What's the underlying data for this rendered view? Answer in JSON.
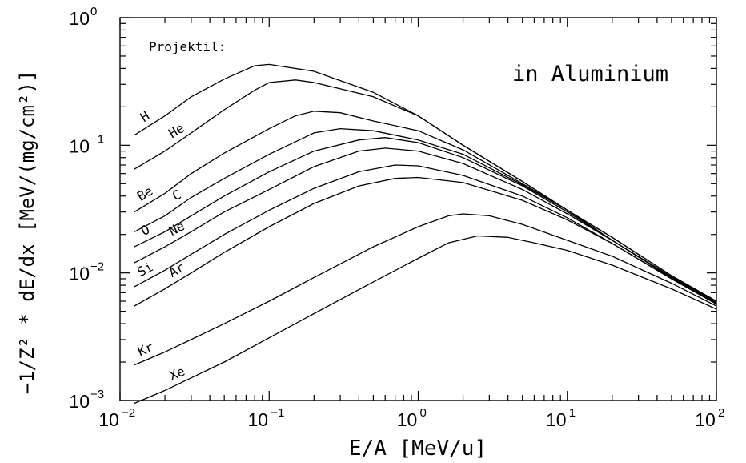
{
  "chart_data": {
    "type": "line",
    "x_scale": "log",
    "y_scale": "log",
    "xlim": [
      0.01,
      100
    ],
    "ylim": [
      0.001,
      1
    ],
    "grid": false,
    "xlabel": "E/A [MeV/u]",
    "ylabel": "−1/Z² * dE/dx   [MeV/(mg/cm²)]",
    "annotation": "in Aluminium",
    "legend_title": "Projektil:",
    "x_ticks": [
      {
        "base": "10",
        "exp": "−2"
      },
      {
        "base": "10",
        "exp": "−1"
      },
      {
        "base": "10",
        "exp": "0"
      },
      {
        "base": "10",
        "exp": "1"
      },
      {
        "base": "10",
        "exp": "2"
      }
    ],
    "y_ticks": [
      {
        "base": "10",
        "exp": "−3"
      },
      {
        "base": "10",
        "exp": "−2"
      },
      {
        "base": "10",
        "exp": "−1"
      },
      {
        "base": "10",
        "exp": "0"
      }
    ],
    "series": [
      {
        "name": "H",
        "x": [
          0.0125,
          0.02,
          0.03,
          0.05,
          0.08,
          0.1,
          0.2,
          0.5,
          1,
          2,
          5,
          10,
          20,
          50,
          100
        ],
        "y": [
          0.12,
          0.17,
          0.24,
          0.33,
          0.42,
          0.43,
          0.38,
          0.26,
          0.17,
          0.1,
          0.052,
          0.031,
          0.019,
          0.0095,
          0.006
        ]
      },
      {
        "name": "He",
        "x": [
          0.0125,
          0.02,
          0.03,
          0.05,
          0.08,
          0.1,
          0.15,
          0.2,
          0.5,
          1,
          2,
          5,
          10,
          20,
          50,
          100
        ],
        "y": [
          0.065,
          0.09,
          0.125,
          0.19,
          0.27,
          0.31,
          0.325,
          0.31,
          0.24,
          0.17,
          0.1,
          0.052,
          0.031,
          0.019,
          0.0095,
          0.006
        ]
      },
      {
        "name": "Be",
        "x": [
          0.0125,
          0.02,
          0.03,
          0.05,
          0.1,
          0.15,
          0.2,
          0.3,
          0.5,
          1,
          2,
          5,
          10,
          20,
          50,
          100
        ],
        "y": [
          0.03,
          0.042,
          0.06,
          0.087,
          0.135,
          0.17,
          0.185,
          0.18,
          0.155,
          0.13,
          0.092,
          0.05,
          0.031,
          0.018,
          0.0093,
          0.0059
        ]
      },
      {
        "name": "C",
        "x": [
          0.0125,
          0.02,
          0.03,
          0.05,
          0.1,
          0.2,
          0.3,
          0.5,
          1,
          2,
          5,
          10,
          20,
          50,
          100
        ],
        "y": [
          0.021,
          0.028,
          0.039,
          0.055,
          0.085,
          0.125,
          0.135,
          0.13,
          0.11,
          0.085,
          0.049,
          0.031,
          0.018,
          0.0093,
          0.0059
        ]
      },
      {
        "name": "O",
        "x": [
          0.0125,
          0.02,
          0.03,
          0.05,
          0.1,
          0.2,
          0.4,
          0.6,
          1,
          2,
          5,
          10,
          20,
          50,
          100
        ],
        "y": [
          0.016,
          0.021,
          0.028,
          0.04,
          0.062,
          0.09,
          0.11,
          0.115,
          0.105,
          0.08,
          0.048,
          0.03,
          0.018,
          0.0092,
          0.0058
        ]
      },
      {
        "name": "Ne",
        "x": [
          0.0125,
          0.02,
          0.03,
          0.05,
          0.1,
          0.2,
          0.4,
          0.6,
          1,
          2,
          5,
          10,
          20,
          50,
          100
        ],
        "y": [
          0.012,
          0.016,
          0.021,
          0.03,
          0.045,
          0.068,
          0.09,
          0.095,
          0.09,
          0.072,
          0.045,
          0.029,
          0.018,
          0.0091,
          0.0058
        ]
      },
      {
        "name": "Si",
        "x": [
          0.0125,
          0.02,
          0.03,
          0.05,
          0.1,
          0.2,
          0.4,
          0.7,
          1,
          2,
          5,
          10,
          20,
          50,
          100
        ],
        "y": [
          0.0078,
          0.0105,
          0.014,
          0.02,
          0.031,
          0.046,
          0.062,
          0.07,
          0.069,
          0.058,
          0.04,
          0.027,
          0.017,
          0.009,
          0.0057
        ]
      },
      {
        "name": "Ar",
        "x": [
          0.0125,
          0.02,
          0.03,
          0.05,
          0.1,
          0.2,
          0.4,
          0.7,
          1,
          2,
          5,
          10,
          20,
          50,
          100
        ],
        "y": [
          0.0055,
          0.0075,
          0.01,
          0.0145,
          0.023,
          0.035,
          0.048,
          0.055,
          0.056,
          0.051,
          0.037,
          0.026,
          0.017,
          0.009,
          0.0057
        ]
      },
      {
        "name": "Kr",
        "x": [
          0.0125,
          0.02,
          0.05,
          0.1,
          0.2,
          0.5,
          1,
          1.6,
          2,
          3,
          5,
          10,
          20,
          50,
          100
        ],
        "y": [
          0.0019,
          0.0024,
          0.004,
          0.006,
          0.0092,
          0.016,
          0.023,
          0.028,
          0.029,
          0.028,
          0.024,
          0.018,
          0.0135,
          0.0083,
          0.0055
        ]
      },
      {
        "name": "Xe",
        "x": [
          0.0125,
          0.02,
          0.05,
          0.1,
          0.2,
          0.5,
          1,
          1.6,
          2.5,
          4,
          6,
          10,
          20,
          50,
          100
        ],
        "y": [
          0.00095,
          0.0012,
          0.002,
          0.0031,
          0.0048,
          0.0085,
          0.013,
          0.0172,
          0.0195,
          0.019,
          0.0172,
          0.015,
          0.0115,
          0.0075,
          0.0052
        ]
      }
    ]
  }
}
